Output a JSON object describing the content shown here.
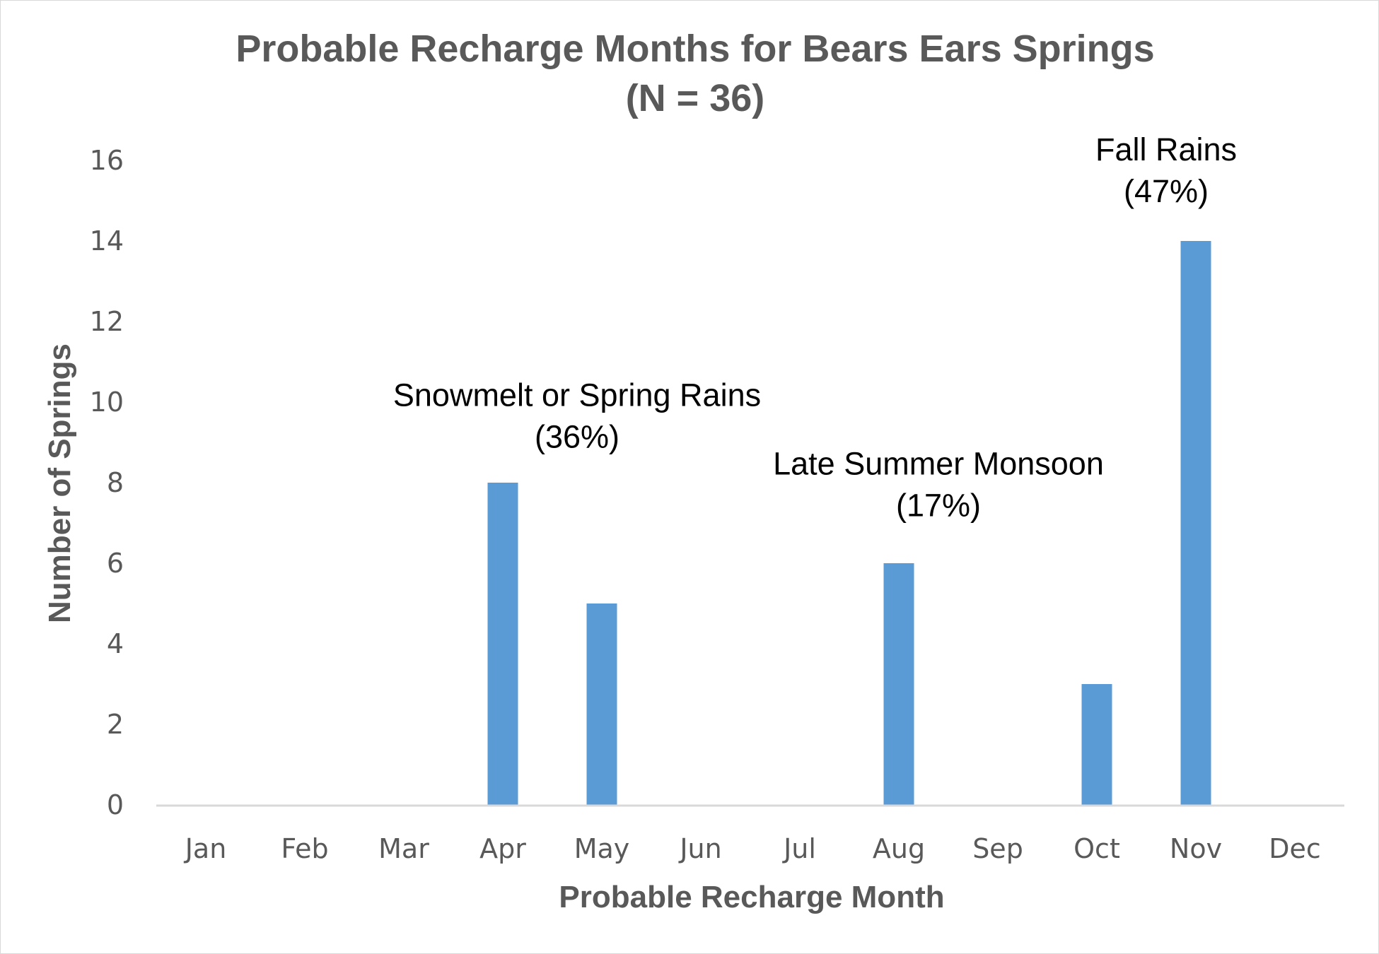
{
  "chart_data": {
    "type": "bar",
    "title": "Probable Recharge Months for Bears Ears Springs",
    "subtitle": "(N = 36)",
    "xlabel": "Probable Recharge Month",
    "ylabel": "Number of Springs",
    "categories": [
      "Jan",
      "Feb",
      "Mar",
      "Apr",
      "May",
      "Jun",
      "Jul",
      "Aug",
      "Sep",
      "Oct",
      "Nov",
      "Dec"
    ],
    "values": [
      0,
      0,
      0,
      8,
      5,
      0,
      0,
      6,
      0,
      3,
      14,
      0
    ],
    "ylim": [
      0,
      16
    ],
    "yticks": [
      0,
      2,
      4,
      6,
      8,
      10,
      12,
      14,
      16
    ],
    "grid": false,
    "bar_color": "#5b9bd5",
    "annotations": [
      {
        "line1": "Snowmelt or Spring Rains",
        "line2": "(36%)",
        "anchor_x": 4.25,
        "anchor_y": 9.9
      },
      {
        "line1": "Late Summer Monsoon",
        "line2": "(17%)",
        "anchor_x": 7.9,
        "anchor_y": 8.2
      },
      {
        "line1": "Fall Rains",
        "line2": "(47%)",
        "anchor_x": 10.2,
        "anchor_y": 16.0
      }
    ]
  }
}
